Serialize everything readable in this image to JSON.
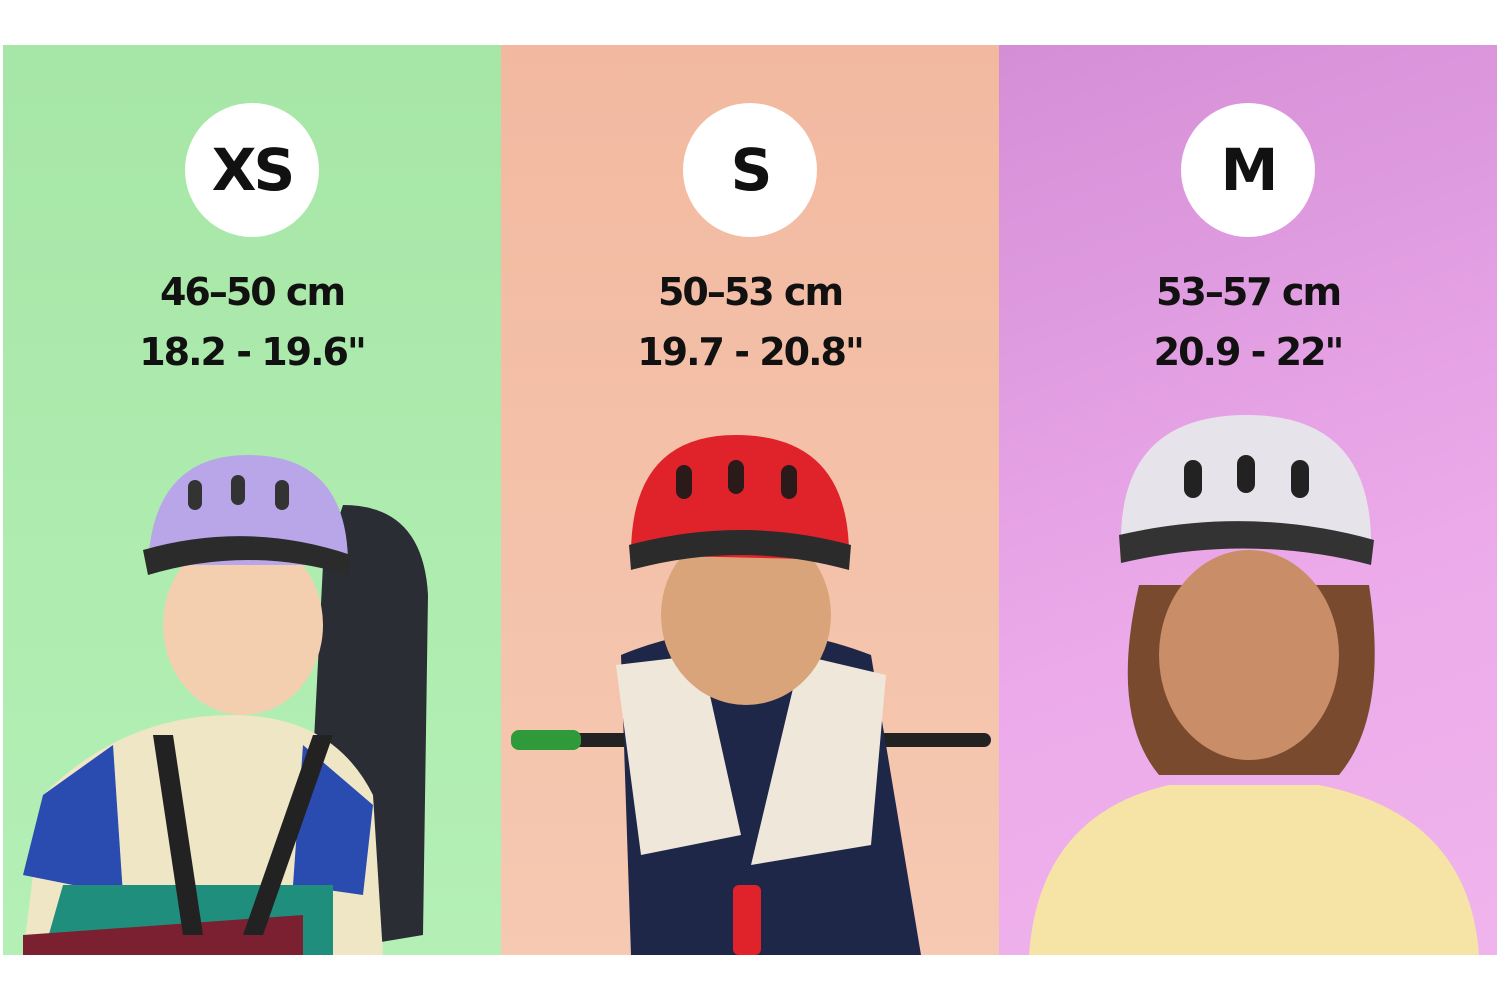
{
  "sizes": [
    {
      "label": "XS",
      "cm": "46–50 cm",
      "inches": "18.2 - 19.6\"",
      "panel_color": "#a6e6a6",
      "helmet_color": "#b9a6e8"
    },
    {
      "label": "S",
      "cm": "50–53 cm",
      "inches": "19.7 - 20.8\"",
      "panel_color": "#f2b9a0",
      "helmet_color": "#e0232a"
    },
    {
      "label": "M",
      "cm": "53–57 cm",
      "inches": "20.9 - 22\"",
      "panel_color": "#e3a0e0",
      "helmet_color": "#e6e4ea"
    }
  ]
}
